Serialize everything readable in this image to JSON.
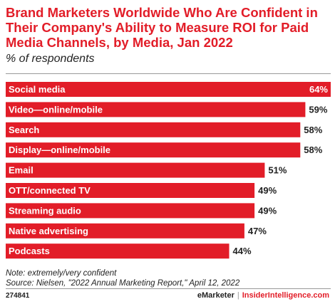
{
  "title": "Brand Marketers Worldwide Who Are Confident in Their Company's Ability to Measure ROI for Paid Media Channels, by Media, Jan 2022",
  "subtitle": "% of respondents",
  "chart_data": {
    "type": "bar",
    "orientation": "horizontal",
    "categories": [
      "Social media",
      "Video—online/mobile",
      "Search",
      "Display—online/mobile",
      "Email",
      "OTT/connected TV",
      "Streaming audio",
      "Native advertising",
      "Podcasts"
    ],
    "values": [
      64,
      59,
      58,
      58,
      51,
      49,
      49,
      47,
      44
    ],
    "value_suffix": "%",
    "xlim": [
      0,
      64
    ],
    "grid": false,
    "bar_color": "#e21d28"
  },
  "notes": {
    "note": "Note: extremely/very confident",
    "source": "Source: Nielsen, \"2022 Annual Marketing Report,\" April 12, 2022"
  },
  "footer": {
    "chart_id": "274841",
    "brand": "eMarketer",
    "separator": "|",
    "site": "InsiderIntelligence.com"
  }
}
